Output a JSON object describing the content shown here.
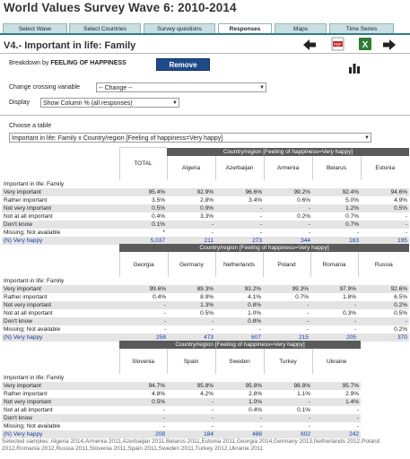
{
  "app_title": "World Values Survey Wave 6: 2010-2014",
  "tabs": [
    {
      "label": "Select Wave"
    },
    {
      "label": "Select Countries"
    },
    {
      "label": "Survey questions"
    },
    {
      "label": "Responses"
    },
    {
      "label": "Maps"
    },
    {
      "label": "Time Series"
    }
  ],
  "question_title": "V4.- Important in life: Family",
  "breakdown": {
    "prefix": "Breakdown by",
    "variable": "FEELING OF HAPPINESS",
    "remove_label": "Remove"
  },
  "crossing": {
    "label": "Change crossing variable",
    "value": "-- Change --"
  },
  "display": {
    "label": "Display",
    "value": "Show Column % (all responses)"
  },
  "choose_table": {
    "label": "Choose a table",
    "value": "Important in life: Family x Country/region [Feeling of happiness=Very happy]"
  },
  "group_header": "Country/region [Feeling of happiness=Very happy]",
  "row_title": "Important in life: Family",
  "row_labels": [
    "Very important",
    "Rather important",
    "Not very important",
    "Not at all important",
    "Don't know",
    "Missing; Not available",
    "(N) Very happy"
  ],
  "blocks": [
    {
      "total_label": "TOTAL",
      "columns": [
        "Algeria",
        "Azerbaijan",
        "Armenia",
        "Belarus",
        "Estonia"
      ],
      "total": [
        "95.4%",
        "3.5%",
        "0.5%",
        "0.4%",
        "0.1%",
        "*",
        "5,037"
      ],
      "rows": [
        [
          "92.9%",
          "96.6%",
          "99.2%",
          "92.4%",
          "94.6%"
        ],
        [
          "2.8%",
          "3.4%",
          "0.6%",
          "5.0%",
          "4.9%"
        ],
        [
          "0.9%",
          "-",
          "-",
          "1.2%",
          "0.5%"
        ],
        [
          "3.3%",
          "-",
          "0.2%",
          "0.7%",
          "-"
        ],
        [
          "-",
          "-",
          "-",
          "0.7%",
          "-"
        ],
        [
          "-",
          "-",
          "-",
          "-",
          "-"
        ],
        [
          "211",
          "273",
          "344",
          "163",
          "195"
        ]
      ]
    },
    {
      "columns": [
        "Georgia",
        "Germany",
        "Netherlands",
        "Poland",
        "Romania",
        "Russia"
      ],
      "rows": [
        [
          "99.6%",
          "89.3%",
          "93.2%",
          "99.3%",
          "97.9%",
          "92.6%"
        ],
        [
          "0.4%",
          "8.9%",
          "4.1%",
          "0.7%",
          "1.8%",
          "6.5%"
        ],
        [
          "-",
          "1.3%",
          "0.8%",
          "-",
          "-",
          "0.2%"
        ],
        [
          "-",
          "0.5%",
          "1.0%",
          "-",
          "0.3%",
          "0.5%"
        ],
        [
          "-",
          "-",
          "0.8%",
          "-",
          "-",
          "-"
        ],
        [
          "-",
          "-",
          "-",
          "-",
          "-",
          "0.2%"
        ],
        [
          "258",
          "473",
          "607",
          "215",
          "205",
          "370"
        ]
      ]
    },
    {
      "columns": [
        "Slovenia",
        "Spain",
        "Sweden",
        "Turkey",
        "Ukraine"
      ],
      "rows": [
        [
          "94.7%",
          "95.8%",
          "95.8%",
          "98.8%",
          "95.7%"
        ],
        [
          "4.8%",
          "4.2%",
          "2.8%",
          "1.1%",
          "2.9%"
        ],
        [
          "0.5%",
          "-",
          "1.0%",
          "-",
          "1.4%"
        ],
        [
          "-",
          "-",
          "0.4%",
          "0.1%",
          "-"
        ],
        [
          "-",
          "-",
          "-",
          "-",
          "-"
        ],
        [
          "-",
          "-",
          "-",
          "-",
          "-"
        ],
        [
          "208",
          "184",
          "488",
          "602",
          "242"
        ]
      ]
    }
  ],
  "footnote": "Selected samples: Algeria 2014,Armenia 2011,Azerbaijan 2011,Belarus 2011,Estonia 2011,Georgia 2014,Germany 2013,Netherlands 2012,Poland 2012,Romania 2012,Russia 2011,Slovenia 2011,Spain 2011,Sweden 2011,Turkey 2012,Ukraine 2011",
  "icons": [
    "arrow-left-icon",
    "pdf-icon",
    "excel-icon",
    "arrow-right-icon",
    "bar-chart-icon"
  ],
  "colors": {
    "tab_bg": "#c9dfe1",
    "tab_line": "#2f7d86",
    "remove_button": "#1f4a8a",
    "group_header": "#5a5a5a",
    "n_row": "#1a3ea0"
  }
}
